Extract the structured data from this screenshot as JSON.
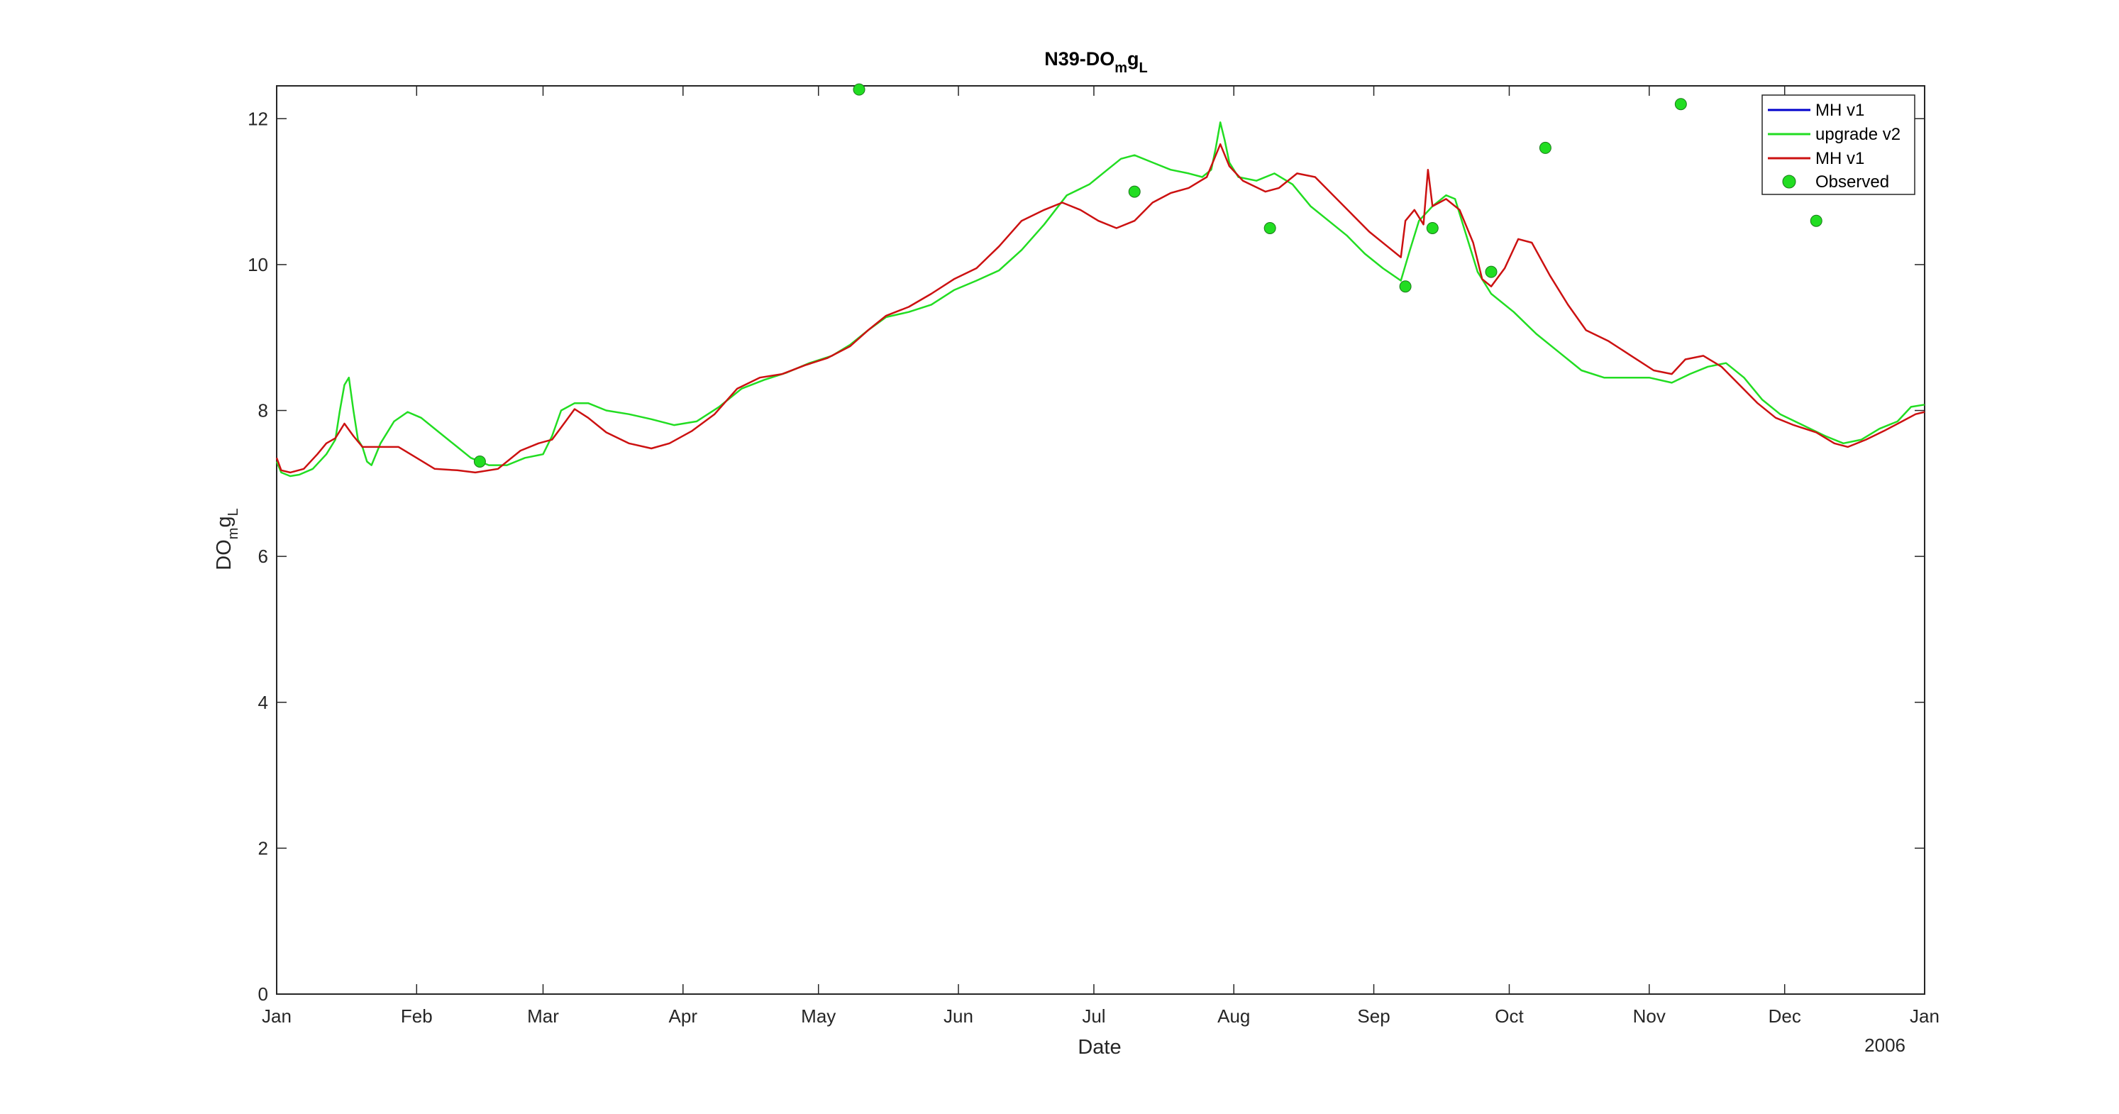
{
  "chart_data": {
    "type": "line",
    "title_main": "N39-DO",
    "title_sub1": "m",
    "title_mid": "g",
    "title_sub2": "L",
    "xlabel": "Date",
    "ylabel_main": "DO",
    "ylabel_sub1": "m",
    "ylabel_mid": "g",
    "ylabel_sub2": "L",
    "year_label": "2006",
    "ylim": [
      0,
      12.45
    ],
    "yticks": [
      "0",
      "2",
      "4",
      "6",
      "8",
      "10",
      "12"
    ],
    "x_start": "2006-01-01",
    "x_end": "2007-01-01",
    "x_ticks": [
      "Jan",
      "Feb",
      "Mar",
      "Apr",
      "May",
      "Jun",
      "Jul",
      "Aug",
      "Sep",
      "Oct",
      "Nov",
      "Dec",
      "Jan"
    ],
    "grid": false,
    "legend_position": "top-right",
    "series": [
      {
        "name": "MH v1",
        "color": "#0000cc",
        "points": []
      },
      {
        "name": "upgrade v2",
        "color": "#22dd22",
        "points": [
          [
            "2006-01-01",
            7.3
          ],
          [
            "2006-01-02",
            7.15
          ],
          [
            "2006-01-04",
            7.1
          ],
          [
            "2006-01-06",
            7.12
          ],
          [
            "2006-01-09",
            7.2
          ],
          [
            "2006-01-12",
            7.4
          ],
          [
            "2006-01-14",
            7.6
          ],
          [
            "2006-01-15",
            8.0
          ],
          [
            "2006-01-16",
            8.35
          ],
          [
            "2006-01-17",
            8.45
          ],
          [
            "2006-01-18",
            8.0
          ],
          [
            "2006-01-19",
            7.6
          ],
          [
            "2006-01-20",
            7.5
          ],
          [
            "2006-01-21",
            7.3
          ],
          [
            "2006-01-22",
            7.25
          ],
          [
            "2006-01-24",
            7.55
          ],
          [
            "2006-01-27",
            7.85
          ],
          [
            "2006-01-30",
            7.98
          ],
          [
            "2006-02-02",
            7.9
          ],
          [
            "2006-02-06",
            7.7
          ],
          [
            "2006-02-10",
            7.5
          ],
          [
            "2006-02-13",
            7.35
          ],
          [
            "2006-02-17",
            7.25
          ],
          [
            "2006-02-21",
            7.25
          ],
          [
            "2006-02-25",
            7.35
          ],
          [
            "2006-03-01",
            7.4
          ],
          [
            "2006-03-03",
            7.65
          ],
          [
            "2006-03-05",
            8.0
          ],
          [
            "2006-03-08",
            8.1
          ],
          [
            "2006-03-11",
            8.1
          ],
          [
            "2006-03-15",
            8.0
          ],
          [
            "2006-03-20",
            7.95
          ],
          [
            "2006-03-25",
            7.88
          ],
          [
            "2006-03-30",
            7.8
          ],
          [
            "2006-04-04",
            7.85
          ],
          [
            "2006-04-09",
            8.05
          ],
          [
            "2006-04-14",
            8.3
          ],
          [
            "2006-04-19",
            8.42
          ],
          [
            "2006-04-24",
            8.52
          ],
          [
            "2006-04-29",
            8.65
          ],
          [
            "2006-05-04",
            8.75
          ],
          [
            "2006-05-08",
            8.9
          ],
          [
            "2006-05-12",
            9.1
          ],
          [
            "2006-05-16",
            9.28
          ],
          [
            "2006-05-21",
            9.35
          ],
          [
            "2006-05-26",
            9.45
          ],
          [
            "2006-05-31",
            9.65
          ],
          [
            "2006-06-05",
            9.78
          ],
          [
            "2006-06-10",
            9.92
          ],
          [
            "2006-06-15",
            10.2
          ],
          [
            "2006-06-20",
            10.55
          ],
          [
            "2006-06-25",
            10.95
          ],
          [
            "2006-06-30",
            11.1
          ],
          [
            "2006-07-04",
            11.3
          ],
          [
            "2006-07-07",
            11.45
          ],
          [
            "2006-07-10",
            11.5
          ],
          [
            "2006-07-14",
            11.4
          ],
          [
            "2006-07-18",
            11.3
          ],
          [
            "2006-07-22",
            11.25
          ],
          [
            "2006-07-25",
            11.2
          ],
          [
            "2006-07-27",
            11.3
          ],
          [
            "2006-07-28",
            11.6
          ],
          [
            "2006-07-29",
            11.95
          ],
          [
            "2006-07-30",
            11.7
          ],
          [
            "2006-07-31",
            11.4
          ],
          [
            "2006-08-02",
            11.2
          ],
          [
            "2006-08-06",
            11.15
          ],
          [
            "2006-08-10",
            11.25
          ],
          [
            "2006-08-14",
            11.1
          ],
          [
            "2006-08-18",
            10.8
          ],
          [
            "2006-08-22",
            10.6
          ],
          [
            "2006-08-26",
            10.4
          ],
          [
            "2006-08-30",
            10.15
          ],
          [
            "2006-09-03",
            9.95
          ],
          [
            "2006-09-07",
            9.78
          ],
          [
            "2006-09-09",
            10.2
          ],
          [
            "2006-09-11",
            10.6
          ],
          [
            "2006-09-14",
            10.8
          ],
          [
            "2006-09-17",
            10.95
          ],
          [
            "2006-09-19",
            10.9
          ],
          [
            "2006-09-21",
            10.5
          ],
          [
            "2006-09-24",
            9.9
          ],
          [
            "2006-09-27",
            9.6
          ],
          [
            "2006-10-02",
            9.35
          ],
          [
            "2006-10-07",
            9.05
          ],
          [
            "2006-10-12",
            8.8
          ],
          [
            "2006-10-17",
            8.55
          ],
          [
            "2006-10-22",
            8.45
          ],
          [
            "2006-10-27",
            8.45
          ],
          [
            "2006-11-01",
            8.45
          ],
          [
            "2006-11-06",
            8.38
          ],
          [
            "2006-11-10",
            8.5
          ],
          [
            "2006-11-14",
            8.6
          ],
          [
            "2006-11-18",
            8.65
          ],
          [
            "2006-11-22",
            8.45
          ],
          [
            "2006-11-26",
            8.15
          ],
          [
            "2006-11-30",
            7.95
          ],
          [
            "2006-12-05",
            7.8
          ],
          [
            "2006-12-10",
            7.65
          ],
          [
            "2006-12-14",
            7.55
          ],
          [
            "2006-12-18",
            7.6
          ],
          [
            "2006-12-22",
            7.75
          ],
          [
            "2006-12-26",
            7.85
          ],
          [
            "2006-12-29",
            8.05
          ],
          [
            "2007-01-01",
            8.08
          ]
        ]
      },
      {
        "name": "MH v1",
        "color": "#cc1111",
        "points": [
          [
            "2006-01-01",
            7.35
          ],
          [
            "2006-01-02",
            7.18
          ],
          [
            "2006-01-04",
            7.15
          ],
          [
            "2006-01-07",
            7.2
          ],
          [
            "2006-01-10",
            7.4
          ],
          [
            "2006-01-12",
            7.55
          ],
          [
            "2006-01-14",
            7.62
          ],
          [
            "2006-01-16",
            7.82
          ],
          [
            "2006-01-18",
            7.65
          ],
          [
            "2006-01-20",
            7.5
          ],
          [
            "2006-01-24",
            7.5
          ],
          [
            "2006-01-28",
            7.5
          ],
          [
            "2006-02-01",
            7.35
          ],
          [
            "2006-02-05",
            7.2
          ],
          [
            "2006-02-10",
            7.18
          ],
          [
            "2006-02-14",
            7.15
          ],
          [
            "2006-02-19",
            7.2
          ],
          [
            "2006-02-24",
            7.45
          ],
          [
            "2006-02-28",
            7.55
          ],
          [
            "2006-03-03",
            7.6
          ],
          [
            "2006-03-06",
            7.85
          ],
          [
            "2006-03-08",
            8.02
          ],
          [
            "2006-03-11",
            7.9
          ],
          [
            "2006-03-15",
            7.7
          ],
          [
            "2006-03-20",
            7.55
          ],
          [
            "2006-03-25",
            7.48
          ],
          [
            "2006-03-29",
            7.55
          ],
          [
            "2006-04-03",
            7.72
          ],
          [
            "2006-04-08",
            7.95
          ],
          [
            "2006-04-13",
            8.3
          ],
          [
            "2006-04-18",
            8.45
          ],
          [
            "2006-04-23",
            8.5
          ],
          [
            "2006-04-28",
            8.62
          ],
          [
            "2006-05-03",
            8.72
          ],
          [
            "2006-05-08",
            8.88
          ],
          [
            "2006-05-12",
            9.1
          ],
          [
            "2006-05-16",
            9.3
          ],
          [
            "2006-05-21",
            9.42
          ],
          [
            "2006-05-26",
            9.6
          ],
          [
            "2006-05-31",
            9.8
          ],
          [
            "2006-06-05",
            9.95
          ],
          [
            "2006-06-10",
            10.25
          ],
          [
            "2006-06-15",
            10.6
          ],
          [
            "2006-06-20",
            10.75
          ],
          [
            "2006-06-24",
            10.85
          ],
          [
            "2006-06-28",
            10.75
          ],
          [
            "2006-07-02",
            10.6
          ],
          [
            "2006-07-06",
            10.5
          ],
          [
            "2006-07-10",
            10.6
          ],
          [
            "2006-07-14",
            10.85
          ],
          [
            "2006-07-18",
            10.98
          ],
          [
            "2006-07-22",
            11.05
          ],
          [
            "2006-07-26",
            11.2
          ],
          [
            "2006-07-28",
            11.5
          ],
          [
            "2006-07-29",
            11.65
          ],
          [
            "2006-07-31",
            11.35
          ],
          [
            "2006-08-03",
            11.15
          ],
          [
            "2006-08-08",
            11.0
          ],
          [
            "2006-08-11",
            11.05
          ],
          [
            "2006-08-15",
            11.25
          ],
          [
            "2006-08-19",
            11.2
          ],
          [
            "2006-08-23",
            10.95
          ],
          [
            "2006-08-27",
            10.7
          ],
          [
            "2006-08-31",
            10.45
          ],
          [
            "2006-09-04",
            10.25
          ],
          [
            "2006-09-07",
            10.1
          ],
          [
            "2006-09-08",
            10.6
          ],
          [
            "2006-09-10",
            10.75
          ],
          [
            "2006-09-12",
            10.55
          ],
          [
            "2006-09-13",
            11.3
          ],
          [
            "2006-09-14",
            10.8
          ],
          [
            "2006-09-17",
            10.9
          ],
          [
            "2006-09-20",
            10.75
          ],
          [
            "2006-09-23",
            10.3
          ],
          [
            "2006-09-25",
            9.8
          ],
          [
            "2006-09-27",
            9.7
          ],
          [
            "2006-09-30",
            9.95
          ],
          [
            "2006-10-03",
            10.35
          ],
          [
            "2006-10-06",
            10.3
          ],
          [
            "2006-10-10",
            9.85
          ],
          [
            "2006-10-14",
            9.45
          ],
          [
            "2006-10-18",
            9.1
          ],
          [
            "2006-10-23",
            8.95
          ],
          [
            "2006-10-28",
            8.75
          ],
          [
            "2006-11-02",
            8.55
          ],
          [
            "2006-11-06",
            8.5
          ],
          [
            "2006-11-09",
            8.7
          ],
          [
            "2006-11-13",
            8.75
          ],
          [
            "2006-11-17",
            8.6
          ],
          [
            "2006-11-21",
            8.35
          ],
          [
            "2006-11-25",
            8.1
          ],
          [
            "2006-11-29",
            7.9
          ],
          [
            "2006-12-03",
            7.8
          ],
          [
            "2006-12-08",
            7.7
          ],
          [
            "2006-12-12",
            7.55
          ],
          [
            "2006-12-15",
            7.5
          ],
          [
            "2006-12-19",
            7.6
          ],
          [
            "2006-12-23",
            7.72
          ],
          [
            "2006-12-27",
            7.85
          ],
          [
            "2006-12-30",
            7.95
          ],
          [
            "2007-01-01",
            7.98
          ]
        ]
      },
      {
        "name": "Observed",
        "color": "#22dd22",
        "marker": "circle",
        "points": [
          [
            "2006-02-15",
            7.3
          ],
          [
            "2006-05-10",
            12.4
          ],
          [
            "2006-07-10",
            11.0
          ],
          [
            "2006-08-09",
            10.5
          ],
          [
            "2006-09-08",
            9.7
          ],
          [
            "2006-09-14",
            10.5
          ],
          [
            "2006-09-27",
            9.9
          ],
          [
            "2006-10-09",
            11.6
          ],
          [
            "2006-11-08",
            12.2
          ],
          [
            "2006-12-08",
            10.6
          ]
        ]
      }
    ]
  }
}
